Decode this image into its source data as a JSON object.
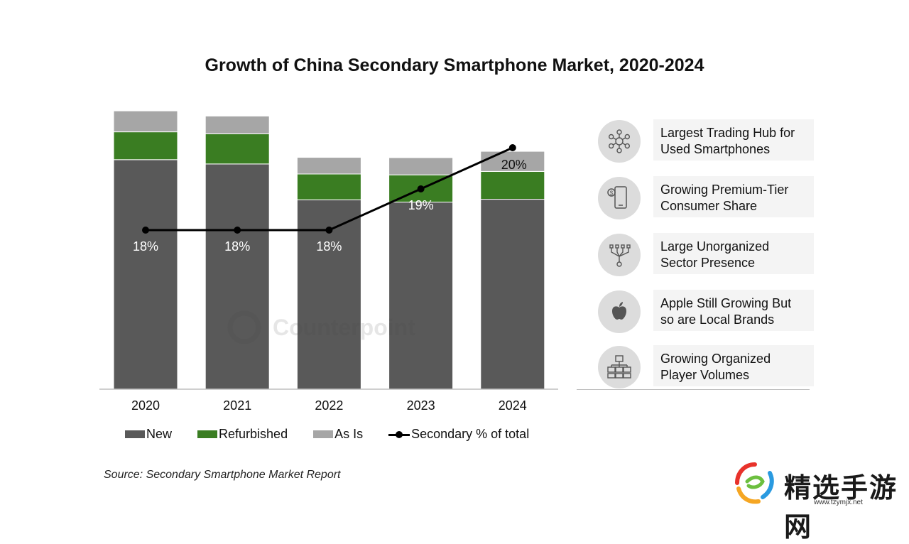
{
  "title": "Growth of China Secondary Smartphone Market, 2020-2024",
  "chart_data": {
    "type": "bar",
    "stacked": true,
    "categories": [
      "2020",
      "2021",
      "2022",
      "2023",
      "2024"
    ],
    "series": [
      {
        "name": "New",
        "values": [
          8.0,
          7.85,
          6.6,
          6.52,
          6.62
        ],
        "color": "#595959"
      },
      {
        "name": "Refurbished",
        "values": [
          0.97,
          1.05,
          0.9,
          0.95,
          0.97
        ],
        "color": "#3a7d22"
      },
      {
        "name": "As Is",
        "values": [
          0.73,
          0.62,
          0.58,
          0.6,
          0.7
        ],
        "color": "#a6a6a6"
      }
    ],
    "line_series": {
      "name": "Secondary % of total",
      "values": [
        18,
        18,
        18,
        19,
        20
      ],
      "labels": [
        "18%",
        "18%",
        "18%",
        "19%",
        "20%"
      ],
      "color": "#000000"
    },
    "legend_position": "bottom",
    "grid": false,
    "watermark": "Counterpoint"
  },
  "legend": {
    "new": "New",
    "refurbished": "Refurbished",
    "as_is": "As Is",
    "secondary": "Secondary % of total"
  },
  "panel": [
    {
      "icon": "network-hub-icon",
      "text_line1": "Largest Trading Hub for",
      "text_line2": "Used Smartphones"
    },
    {
      "icon": "smartphone-dollar-icon",
      "text_line1": "Growing Premium-Tier",
      "text_line2": "Consumer Share"
    },
    {
      "icon": "scattered-arrows-icon",
      "text_line1": "Large Unorganized",
      "text_line2": "Sector Presence"
    },
    {
      "icon": "apple-logo-icon",
      "text_line1": "Apple Still Growing But",
      "text_line2": "so are Local Brands"
    },
    {
      "icon": "org-chart-icon",
      "text_line1": "Growing Organized",
      "text_line2": "Player Volumes"
    }
  ],
  "source": "Source: Secondary Smartphone Market Report",
  "site_watermark": {
    "text": "精选手游网",
    "url": "www.tzymjx.net"
  }
}
